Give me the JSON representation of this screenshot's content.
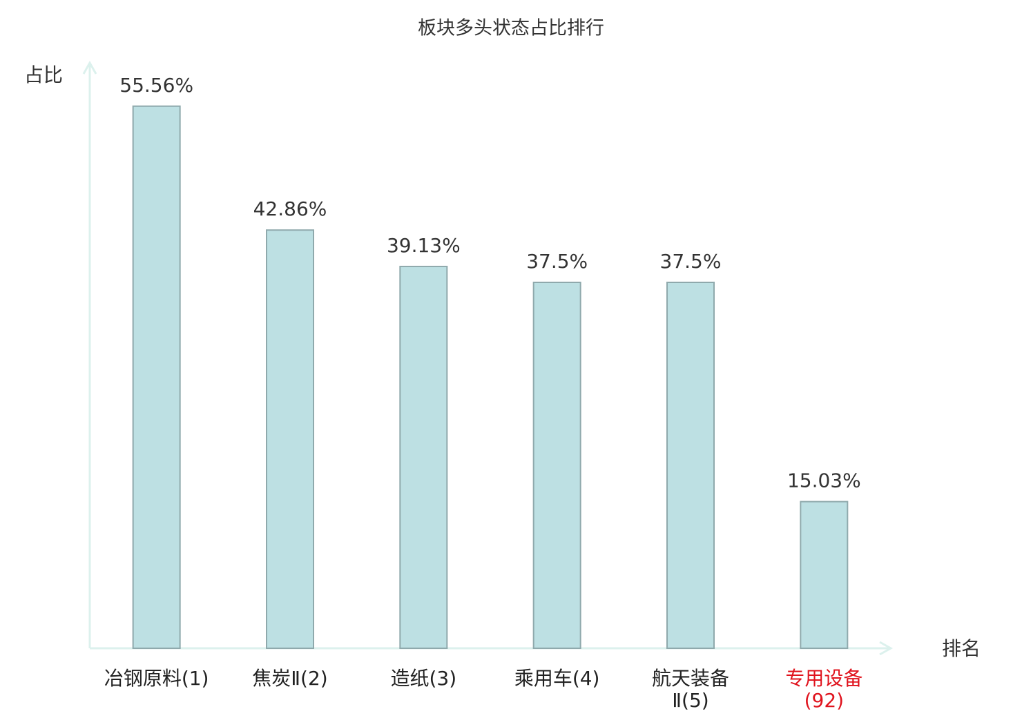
{
  "chart_data": {
    "type": "bar",
    "title": "板块多头状态占比排行",
    "y_label": "占比",
    "x_label": "排名",
    "categories": [
      "冶钢原料(1)",
      "焦炭Ⅱ(2)",
      "造纸(3)",
      "乘用车(4)",
      "航天装备Ⅱ(5)",
      "专用设备(92)"
    ],
    "values": [
      55.56,
      42.86,
      39.13,
      37.5,
      37.5,
      15.03
    ],
    "value_labels": [
      "55.56%",
      "42.86%",
      "39.13%",
      "37.5%",
      "37.5%",
      "15.03%"
    ],
    "color": "#bde0e3",
    "edge_color": "#8fa9ac",
    "axis_color": "#dcf1ed",
    "highlight_index": 5,
    "highlight_color": "#e0141e",
    "ylim": [
      0,
      60
    ]
  }
}
